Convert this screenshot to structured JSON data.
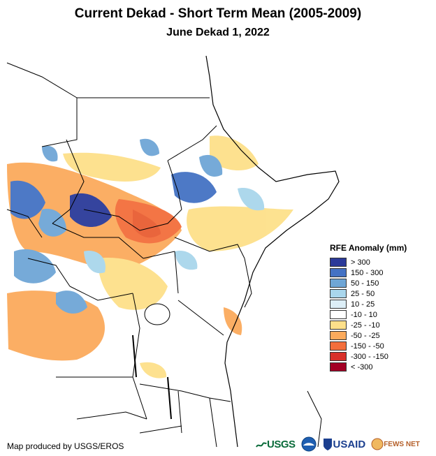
{
  "title": "Current Dekad - Short Term Mean (2005-2009)",
  "subtitle": "June Dekad 1, 2022",
  "legend": {
    "title": "RFE Anomaly (mm)",
    "items": [
      {
        "label": "> 300",
        "color": "#2b3a99"
      },
      {
        "label": "150 - 300",
        "color": "#4472c4"
      },
      {
        "label": "50 - 150",
        "color": "#6fa6d6"
      },
      {
        "label": "25 - 50",
        "color": "#a9d6ec"
      },
      {
        "label": "10 - 25",
        "color": "#dceef7"
      },
      {
        "label": "-10 - 10",
        "color": "#ffffff"
      },
      {
        "label": "-25 - -10",
        "color": "#fde08a"
      },
      {
        "label": "-50 - -25",
        "color": "#fbaa5c"
      },
      {
        "label": "-150 - -50",
        "color": "#f36e3c"
      },
      {
        "label": "-300 - -150",
        "color": "#d8302a"
      },
      {
        "label": "< -300",
        "color": "#a30025"
      }
    ]
  },
  "credit": "Map produced by USGS/EROS",
  "logos": {
    "usgs": "USGS",
    "noaa": "NOAA",
    "usaid": "USAID",
    "fews": "FEWS NET"
  }
}
